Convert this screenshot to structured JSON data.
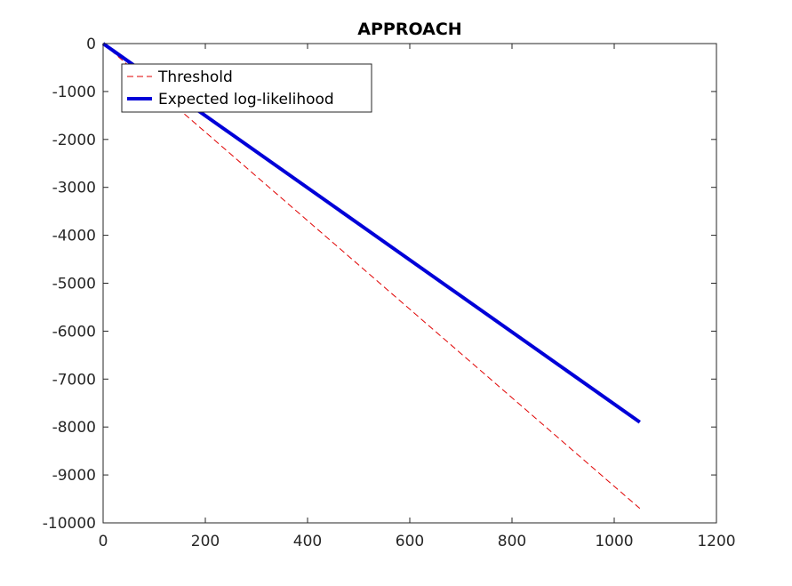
{
  "chart_data": {
    "type": "line",
    "title": "APPROACH",
    "xlabel": "",
    "ylabel": "",
    "xlim": [
      0,
      1200
    ],
    "ylim": [
      -10000,
      0
    ],
    "xticks": [
      0,
      200,
      400,
      600,
      800,
      1000,
      1200
    ],
    "yticks": [
      0,
      -1000,
      -2000,
      -3000,
      -4000,
      -5000,
      -6000,
      -7000,
      -8000,
      -9000,
      -10000
    ],
    "grid": false,
    "legend_position": "top-left",
    "series": [
      {
        "name": "Threshold",
        "style": "dashed",
        "color": "#e00000",
        "x": [
          0,
          1050
        ],
        "y": [
          0,
          -9700
        ]
      },
      {
        "name": "Expected log-likelihood",
        "style": "solid",
        "color": "#0000d8",
        "x": [
          0,
          1050
        ],
        "y": [
          0,
          -7900
        ]
      }
    ]
  }
}
